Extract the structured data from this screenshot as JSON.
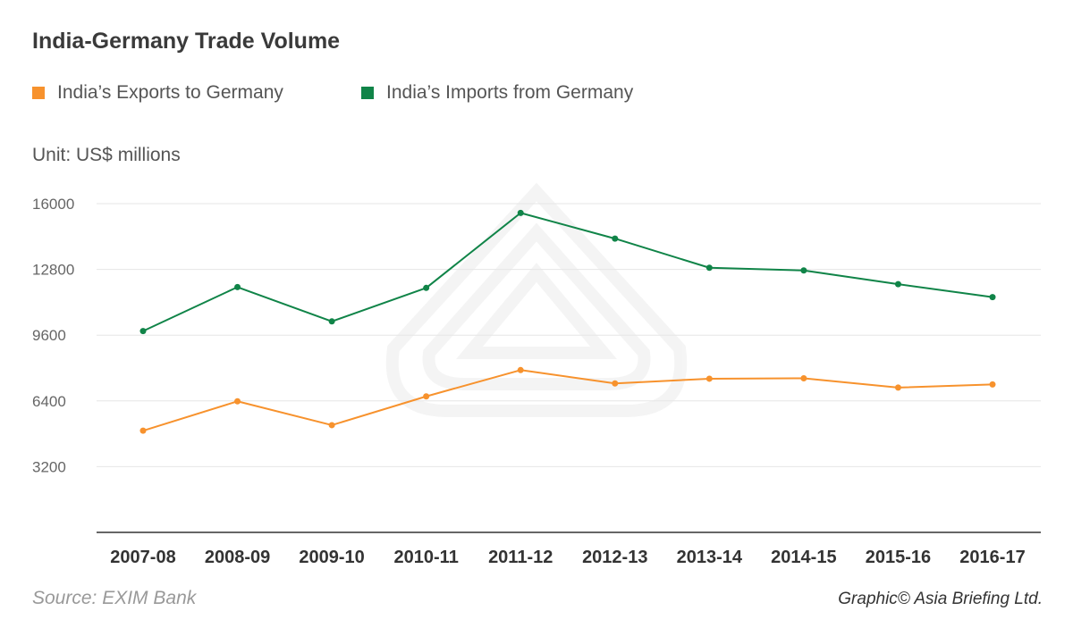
{
  "colors": {
    "exports": "#f7922d",
    "imports": "#108448"
  },
  "chart_data": {
    "type": "line",
    "title": "India-Germany Trade Volume",
    "unit_label": "Unit: US$ millions",
    "categories": [
      "2007-08",
      "2008-09",
      "2009-10",
      "2010-11",
      "2011-12",
      "2012-13",
      "2013-14",
      "2014-15",
      "2015-16",
      "2016-17"
    ],
    "series": [
      {
        "name": "India’s Exports to Germany",
        "color": "#f7922d",
        "values": [
          4950,
          6380,
          5220,
          6620,
          7900,
          7250,
          7480,
          7500,
          7050,
          7200
        ]
      },
      {
        "name": "India’s Imports from Germany",
        "color": "#108448",
        "values": [
          9800,
          11940,
          10270,
          11900,
          15550,
          14300,
          12880,
          12750,
          12080,
          11450
        ]
      }
    ],
    "yticks": [
      3200,
      6400,
      9600,
      12800,
      16000
    ],
    "ylim": [
      0,
      16000
    ],
    "grid": true,
    "legend_position": "top-left"
  },
  "footer": {
    "source": "Source: EXIM Bank",
    "credit": "Graphic© Asia Briefing Ltd."
  }
}
